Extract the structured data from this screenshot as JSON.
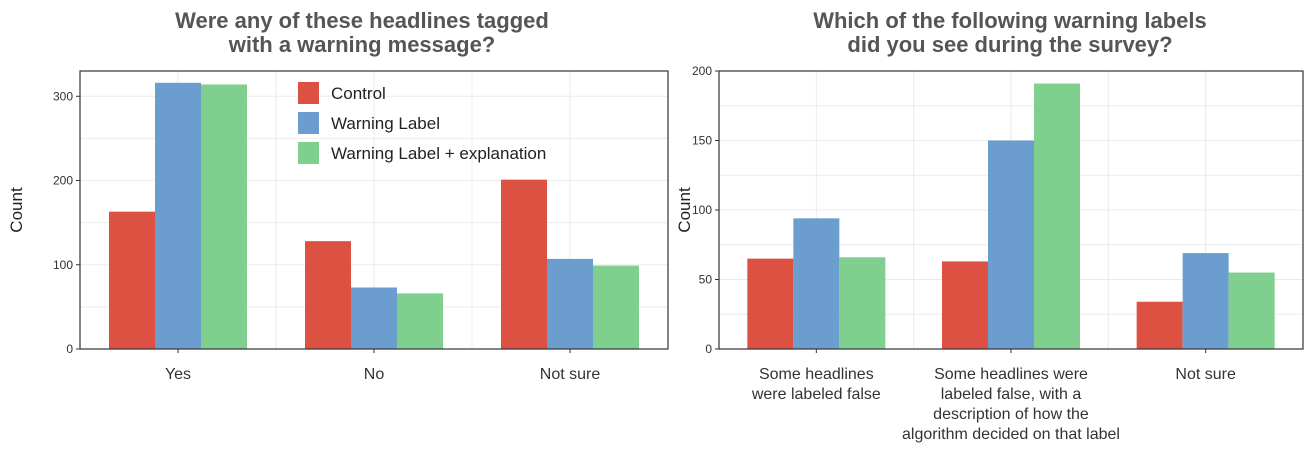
{
  "colors": {
    "control": "#DC5142",
    "warning_label": "#6B9ECF",
    "warning_explanation": "#7FCF8F",
    "grid": "#EBEBEB",
    "panel_border": "#333333"
  },
  "chart_data": [
    {
      "type": "bar",
      "title": [
        "Were any of these headlines tagged",
        "with a warning message?"
      ],
      "xlabel": "",
      "ylabel": "Count",
      "ylim": [
        0,
        330
      ],
      "yticks": [
        0,
        100,
        200,
        300
      ],
      "categories": [
        [
          "Yes"
        ],
        [
          "No"
        ],
        [
          "Not sure"
        ]
      ],
      "series": [
        {
          "name": "Control",
          "color": "#DC5142",
          "values": [
            163,
            128,
            201
          ]
        },
        {
          "name": "Warning Label",
          "color": "#6B9ECF",
          "values": [
            316,
            73,
            107
          ]
        },
        {
          "name": "Warning Label + explanation",
          "color": "#7FCF8F",
          "values": [
            314,
            66,
            99
          ]
        }
      ],
      "legend": "top-center",
      "grid": true
    },
    {
      "type": "bar",
      "title": [
        "Which of the following warning labels",
        "did you see during the survey?"
      ],
      "xlabel": "",
      "ylabel": "Count",
      "ylim": [
        0,
        200
      ],
      "yticks": [
        0,
        50,
        100,
        150,
        200
      ],
      "categories": [
        [
          "Some headlines",
          "were labeled false"
        ],
        [
          "Some headlines were",
          "labeled false, with a",
          "description of how the",
          "algorithm decided on that label"
        ],
        [
          "Not sure"
        ]
      ],
      "series": [
        {
          "color": "#DC5142",
          "values": [
            65,
            63,
            34
          ]
        },
        {
          "color": "#6B9ECF",
          "values": [
            94,
            150,
            69
          ]
        },
        {
          "color": "#7FCF8F",
          "values": [
            66,
            191,
            55
          ]
        }
      ],
      "grid": true
    }
  ]
}
